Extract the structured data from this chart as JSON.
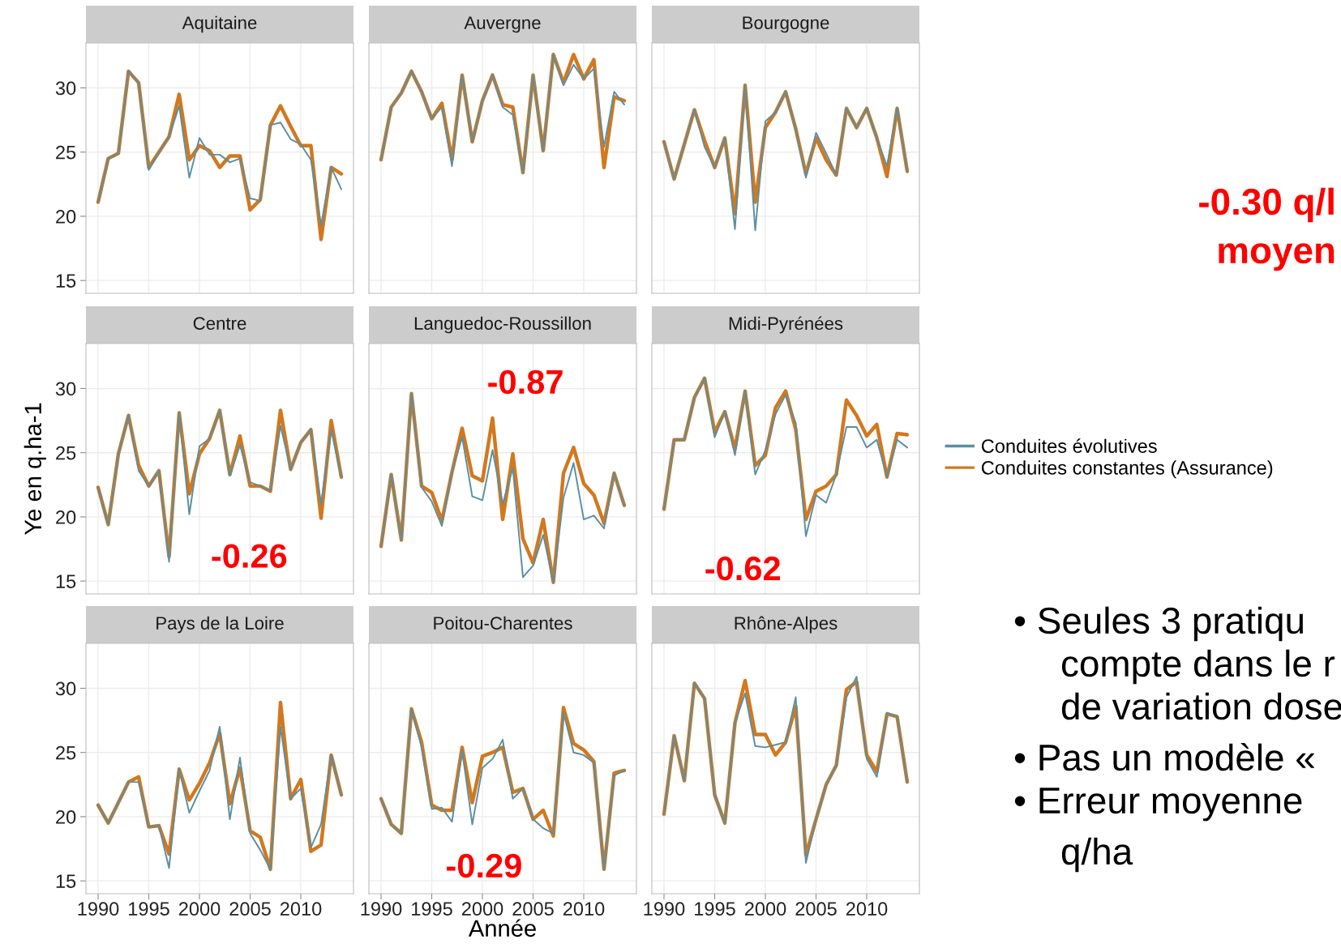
{
  "chart_data": [
    {
      "type": "line",
      "title": "Aquitaine",
      "x": [
        1990,
        1991,
        1992,
        1993,
        1994,
        1995,
        1996,
        1997,
        1998,
        1999,
        2000,
        2001,
        2002,
        2003,
        2004,
        2005,
        2006,
        2007,
        2008,
        2009,
        2010,
        2011,
        2012,
        2013,
        2014
      ],
      "xlim": [
        1988.8,
        2015.2
      ],
      "ylim": [
        14.0,
        33.5
      ],
      "xticks": [
        1990,
        1995,
        2000,
        2005,
        2010
      ],
      "yticks": [
        15,
        20,
        25,
        30
      ],
      "grid": true,
      "tick_labels": "y",
      "legend": "right",
      "series": [
        {
          "name": "Conduites évolutives",
          "color": "#5a8fa3",
          "values": [
            21.1,
            24.5,
            24.9,
            31.3,
            30.4,
            23.6,
            25.0,
            26.2,
            28.6,
            23.0,
            26.1,
            24.8,
            24.8,
            24.2,
            24.5,
            21.4,
            21.2,
            27.1,
            27.3,
            26.0,
            25.6,
            24.4,
            19.3,
            23.8,
            22.1
          ]
        },
        {
          "name": "Conduites constantes (Assurance)",
          "color": "#d2781e",
          "values": [
            21.1,
            24.5,
            24.9,
            31.3,
            30.4,
            23.8,
            25.0,
            26.2,
            29.5,
            24.4,
            25.5,
            25.1,
            23.8,
            24.7,
            24.7,
            20.5,
            21.3,
            27.1,
            28.6,
            27.0,
            25.5,
            25.5,
            18.2,
            23.8,
            23.3
          ]
        }
      ]
    },
    {
      "type": "line",
      "title": "Auvergne",
      "x": [
        1990,
        1991,
        1992,
        1993,
        1994,
        1995,
        1996,
        1997,
        1998,
        1999,
        2000,
        2001,
        2002,
        2003,
        2004,
        2005,
        2006,
        2007,
        2008,
        2009,
        2010,
        2011,
        2012,
        2013,
        2014
      ],
      "xlim": [
        1988.8,
        2015.2
      ],
      "ylim": [
        14.0,
        33.5
      ],
      "xticks": [
        1990,
        1995,
        2000,
        2005,
        2010
      ],
      "yticks": [
        15,
        20,
        25,
        30
      ],
      "grid": true,
      "tick_labels": false,
      "series": [
        {
          "name": "Conduites évolutives",
          "color": "#5a8fa3",
          "values": [
            24.4,
            28.5,
            29.6,
            31.3,
            29.7,
            27.6,
            28.5,
            23.9,
            31.0,
            25.8,
            29.0,
            31.0,
            28.5,
            27.9,
            23.4,
            31.0,
            25.1,
            32.6,
            30.2,
            31.8,
            30.7,
            31.5,
            25.4,
            29.7,
            28.7
          ]
        },
        {
          "name": "Conduites constantes (Assurance)",
          "color": "#d2781e",
          "values": [
            24.4,
            28.5,
            29.6,
            31.3,
            29.7,
            27.6,
            28.8,
            24.4,
            31.0,
            25.8,
            29.0,
            31.0,
            28.7,
            28.5,
            23.4,
            31.0,
            25.1,
            32.6,
            30.4,
            32.6,
            30.7,
            32.2,
            23.8,
            29.3,
            29.0
          ]
        }
      ]
    },
    {
      "type": "line",
      "title": "Bourgogne",
      "x": [
        1990,
        1991,
        1992,
        1993,
        1994,
        1995,
        1996,
        1997,
        1998,
        1999,
        2000,
        2001,
        2002,
        2003,
        2004,
        2005,
        2006,
        2007,
        2008,
        2009,
        2010,
        2011,
        2012,
        2013,
        2014
      ],
      "xlim": [
        1988.8,
        2015.2
      ],
      "ylim": [
        14.0,
        33.5
      ],
      "xticks": [
        1990,
        1995,
        2000,
        2005,
        2010
      ],
      "yticks": [
        15,
        20,
        25,
        30
      ],
      "grid": true,
      "tick_labels": false,
      "series": [
        {
          "name": "Conduites évolutives",
          "color": "#5a8fa3",
          "values": [
            25.8,
            22.9,
            25.6,
            28.3,
            25.4,
            23.8,
            26.1,
            19.0,
            30.2,
            18.9,
            27.4,
            28.1,
            29.7,
            26.8,
            23.0,
            26.5,
            24.9,
            23.2,
            28.4,
            26.9,
            28.4,
            26.1,
            23.9,
            28.4,
            23.5
          ]
        },
        {
          "name": "Conduites constantes (Assurance)",
          "color": "#d2781e",
          "values": [
            25.8,
            22.9,
            25.6,
            28.3,
            25.9,
            23.8,
            26.1,
            20.2,
            30.2,
            21.1,
            26.9,
            28.1,
            29.7,
            26.8,
            23.3,
            26.1,
            24.4,
            23.2,
            28.4,
            26.9,
            28.4,
            26.1,
            23.1,
            28.4,
            23.5
          ]
        }
      ]
    },
    {
      "type": "line",
      "title": "Centre",
      "ylabel": "Ye en q.ha-1",
      "annotations": [
        "-0.26"
      ],
      "x": [
        1990,
        1991,
        1992,
        1993,
        1994,
        1995,
        1996,
        1997,
        1998,
        1999,
        2000,
        2001,
        2002,
        2003,
        2004,
        2005,
        2006,
        2007,
        2008,
        2009,
        2010,
        2011,
        2012,
        2013,
        2014
      ],
      "xlim": [
        1988.8,
        2015.2
      ],
      "ylim": [
        14.0,
        33.5
      ],
      "xticks": [
        1990,
        1995,
        2000,
        2005,
        2010
      ],
      "yticks": [
        15,
        20,
        25,
        30
      ],
      "grid": true,
      "tick_labels": "y",
      "series": [
        {
          "name": "Conduites évolutives",
          "color": "#5a8fa3",
          "values": [
            22.3,
            19.4,
            24.9,
            27.9,
            23.6,
            22.4,
            23.6,
            16.5,
            28.1,
            20.2,
            25.5,
            26.1,
            28.3,
            23.2,
            25.6,
            22.7,
            22.4,
            22.0,
            27.1,
            23.7,
            25.8,
            26.8,
            21.0,
            26.8,
            23.1
          ]
        },
        {
          "name": "Conduites constantes (Assurance)",
          "color": "#d2781e",
          "values": [
            22.3,
            19.4,
            24.9,
            27.9,
            24.0,
            22.4,
            23.6,
            16.9,
            28.1,
            21.8,
            24.9,
            26.1,
            28.3,
            23.3,
            26.3,
            22.4,
            22.4,
            22.0,
            28.3,
            23.7,
            25.8,
            26.8,
            19.9,
            27.5,
            23.1
          ]
        }
      ]
    },
    {
      "type": "line",
      "title": "Languedoc-Roussillon",
      "annotations": [
        "-0.87"
      ],
      "x": [
        1990,
        1991,
        1992,
        1993,
        1994,
        1995,
        1996,
        1997,
        1998,
        1999,
        2000,
        2001,
        2002,
        2003,
        2004,
        2005,
        2006,
        2007,
        2008,
        2009,
        2010,
        2011,
        2012,
        2013,
        2014
      ],
      "xlim": [
        1988.8,
        2015.2
      ],
      "ylim": [
        14.0,
        33.5
      ],
      "xticks": [
        1990,
        1995,
        2000,
        2005,
        2010
      ],
      "yticks": [
        15,
        20,
        25,
        30
      ],
      "grid": true,
      "tick_labels": false,
      "series": [
        {
          "name": "Conduites évolutives",
          "color": "#5a8fa3",
          "values": [
            17.7,
            23.3,
            18.2,
            29.6,
            22.3,
            21.2,
            19.3,
            23.5,
            26.2,
            21.6,
            21.3,
            25.2,
            21.0,
            23.8,
            15.3,
            16.2,
            18.6,
            14.9,
            21.5,
            24.2,
            19.8,
            20.1,
            19.1,
            23.4,
            20.9
          ]
        },
        {
          "name": "Conduites constantes (Assurance)",
          "color": "#d2781e",
          "values": [
            17.7,
            23.3,
            18.2,
            29.6,
            22.4,
            21.9,
            19.7,
            23.5,
            26.9,
            23.2,
            22.8,
            27.7,
            19.8,
            24.9,
            18.3,
            16.4,
            19.8,
            14.9,
            23.4,
            25.4,
            22.6,
            21.7,
            19.5,
            23.4,
            20.9
          ]
        }
      ]
    },
    {
      "type": "line",
      "title": "Midi-Pyrénées",
      "annotations": [
        "-0.62"
      ],
      "x": [
        1990,
        1991,
        1992,
        1993,
        1994,
        1995,
        1996,
        1997,
        1998,
        1999,
        2000,
        2001,
        2002,
        2003,
        2004,
        2005,
        2006,
        2007,
        2008,
        2009,
        2010,
        2011,
        2012,
        2013,
        2014
      ],
      "xlim": [
        1988.8,
        2015.2
      ],
      "ylim": [
        14.0,
        33.5
      ],
      "xticks": [
        1990,
        1995,
        2000,
        2005,
        2010
      ],
      "yticks": [
        15,
        20,
        25,
        30
      ],
      "grid": true,
      "tick_labels": false,
      "series": [
        {
          "name": "Conduites évolutives",
          "color": "#5a8fa3",
          "values": [
            20.6,
            26.0,
            26.0,
            29.3,
            30.8,
            26.2,
            28.2,
            24.8,
            29.8,
            23.3,
            25.2,
            28.0,
            29.5,
            27.3,
            18.5,
            21.7,
            21.1,
            23.3,
            27.0,
            27.0,
            25.4,
            26.0,
            23.1,
            26.0,
            25.4
          ]
        },
        {
          "name": "Conduites constantes (Assurance)",
          "color": "#d2781e",
          "values": [
            20.6,
            26.0,
            26.0,
            29.3,
            30.8,
            26.6,
            28.2,
            25.3,
            29.8,
            24.0,
            24.8,
            28.5,
            29.8,
            26.8,
            19.8,
            22.0,
            22.4,
            23.3,
            29.1,
            27.9,
            26.3,
            27.2,
            23.1,
            26.5,
            26.4
          ]
        }
      ]
    },
    {
      "type": "line",
      "title": "Pays de la Loire",
      "x": [
        1990,
        1991,
        1992,
        1993,
        1994,
        1995,
        1996,
        1997,
        1998,
        1999,
        2000,
        2001,
        2002,
        2003,
        2004,
        2005,
        2006,
        2007,
        2008,
        2009,
        2010,
        2011,
        2012,
        2013,
        2014
      ],
      "xlim": [
        1988.8,
        2015.2
      ],
      "ylim": [
        14.0,
        33.5
      ],
      "xticks": [
        1990,
        1995,
        2000,
        2005,
        2010
      ],
      "yticks": [
        15,
        20,
        25,
        30
      ],
      "grid": true,
      "series": [
        {
          "name": "Conduites évolutives",
          "color": "#5a8fa3",
          "values": [
            20.9,
            19.5,
            21.1,
            22.7,
            22.7,
            19.2,
            19.3,
            16.0,
            23.7,
            20.3,
            22.0,
            23.6,
            27.0,
            19.8,
            24.6,
            18.7,
            17.4,
            15.9,
            27.0,
            21.4,
            22.2,
            17.6,
            19.4,
            24.8,
            21.7
          ]
        },
        {
          "name": "Conduites constantes (Assurance)",
          "color": "#d2781e",
          "values": [
            20.9,
            19.5,
            21.1,
            22.7,
            23.1,
            19.2,
            19.3,
            17.1,
            23.7,
            21.3,
            22.6,
            24.2,
            26.5,
            21.0,
            23.8,
            18.9,
            18.4,
            15.9,
            28.9,
            21.4,
            22.9,
            17.3,
            17.8,
            24.8,
            21.7
          ]
        }
      ]
    },
    {
      "type": "line",
      "title": "Poitou-Charentes",
      "xlabel": "Année",
      "annotations": [
        "-0.29"
      ],
      "x": [
        1990,
        1991,
        1992,
        1993,
        1994,
        1995,
        1996,
        1997,
        1998,
        1999,
        2000,
        2001,
        2002,
        2003,
        2004,
        2005,
        2006,
        2007,
        2008,
        2009,
        2010,
        2011,
        2012,
        2013,
        2014
      ],
      "xlim": [
        1988.8,
        2015.2
      ],
      "ylim": [
        14.0,
        33.5
      ],
      "xticks": [
        1990,
        1995,
        2000,
        2005,
        2010
      ],
      "yticks": [
        15,
        20,
        25,
        30
      ],
      "grid": true,
      "tick_labels": "x",
      "series": [
        {
          "name": "Conduites évolutives",
          "color": "#5a8fa3",
          "values": [
            21.4,
            19.4,
            18.7,
            28.4,
            25.4,
            20.6,
            20.7,
            19.6,
            25.2,
            19.4,
            23.8,
            24.5,
            26.0,
            21.4,
            22.2,
            19.8,
            19.1,
            18.7,
            28.1,
            25.0,
            24.8,
            24.2,
            15.9,
            23.2,
            23.6
          ]
        },
        {
          "name": "Conduites constantes (Assurance)",
          "color": "#d2781e",
          "values": [
            21.4,
            19.4,
            18.7,
            28.4,
            25.8,
            20.9,
            20.5,
            20.5,
            25.4,
            21.1,
            24.7,
            25.0,
            25.4,
            21.9,
            22.2,
            19.8,
            20.5,
            18.5,
            28.5,
            25.7,
            25.2,
            24.3,
            15.9,
            23.4,
            23.6
          ]
        }
      ]
    },
    {
      "type": "line",
      "title": "Rhône-Alpes",
      "x": [
        1990,
        1991,
        1992,
        1993,
        1994,
        1995,
        1996,
        1997,
        1998,
        1999,
        2000,
        2001,
        2002,
        2003,
        2004,
        2005,
        2006,
        2007,
        2008,
        2009,
        2010,
        2011,
        2012,
        2013,
        2014
      ],
      "xlim": [
        1988.8,
        2015.2
      ],
      "ylim": [
        14.0,
        33.5
      ],
      "xticks": [
        1990,
        1995,
        2000,
        2005,
        2010
      ],
      "yticks": [
        15,
        20,
        25,
        30
      ],
      "grid": true,
      "tick_labels": "x",
      "series": [
        {
          "name": "Conduites évolutives",
          "color": "#5a8fa3",
          "values": [
            20.2,
            26.3,
            22.8,
            30.4,
            29.2,
            21.7,
            19.5,
            27.3,
            29.6,
            25.5,
            25.4,
            25.6,
            25.8,
            29.3,
            16.4,
            19.8,
            22.5,
            24.0,
            29.3,
            30.9,
            24.5,
            23.1,
            28.1,
            27.8,
            22.7
          ]
        },
        {
          "name": "Conduites constantes (Assurance)",
          "color": "#d2781e",
          "values": [
            20.2,
            26.3,
            22.8,
            30.4,
            29.2,
            21.7,
            19.5,
            27.3,
            30.6,
            26.4,
            26.4,
            24.8,
            25.8,
            28.6,
            17.0,
            19.8,
            22.5,
            24.0,
            29.9,
            30.5,
            24.8,
            23.5,
            28.0,
            27.8,
            22.7
          ]
        }
      ]
    },
    {
      "type": "other",
      "annotations": [
        "-0.30 q/l",
        "moyen",
        "• Seules 3 pratiqu",
        "compte dans le r",
        "de variation dose",
        "• Pas un modèle «",
        "• Erreur moyenne",
        "q/ha"
      ]
    }
  ]
}
